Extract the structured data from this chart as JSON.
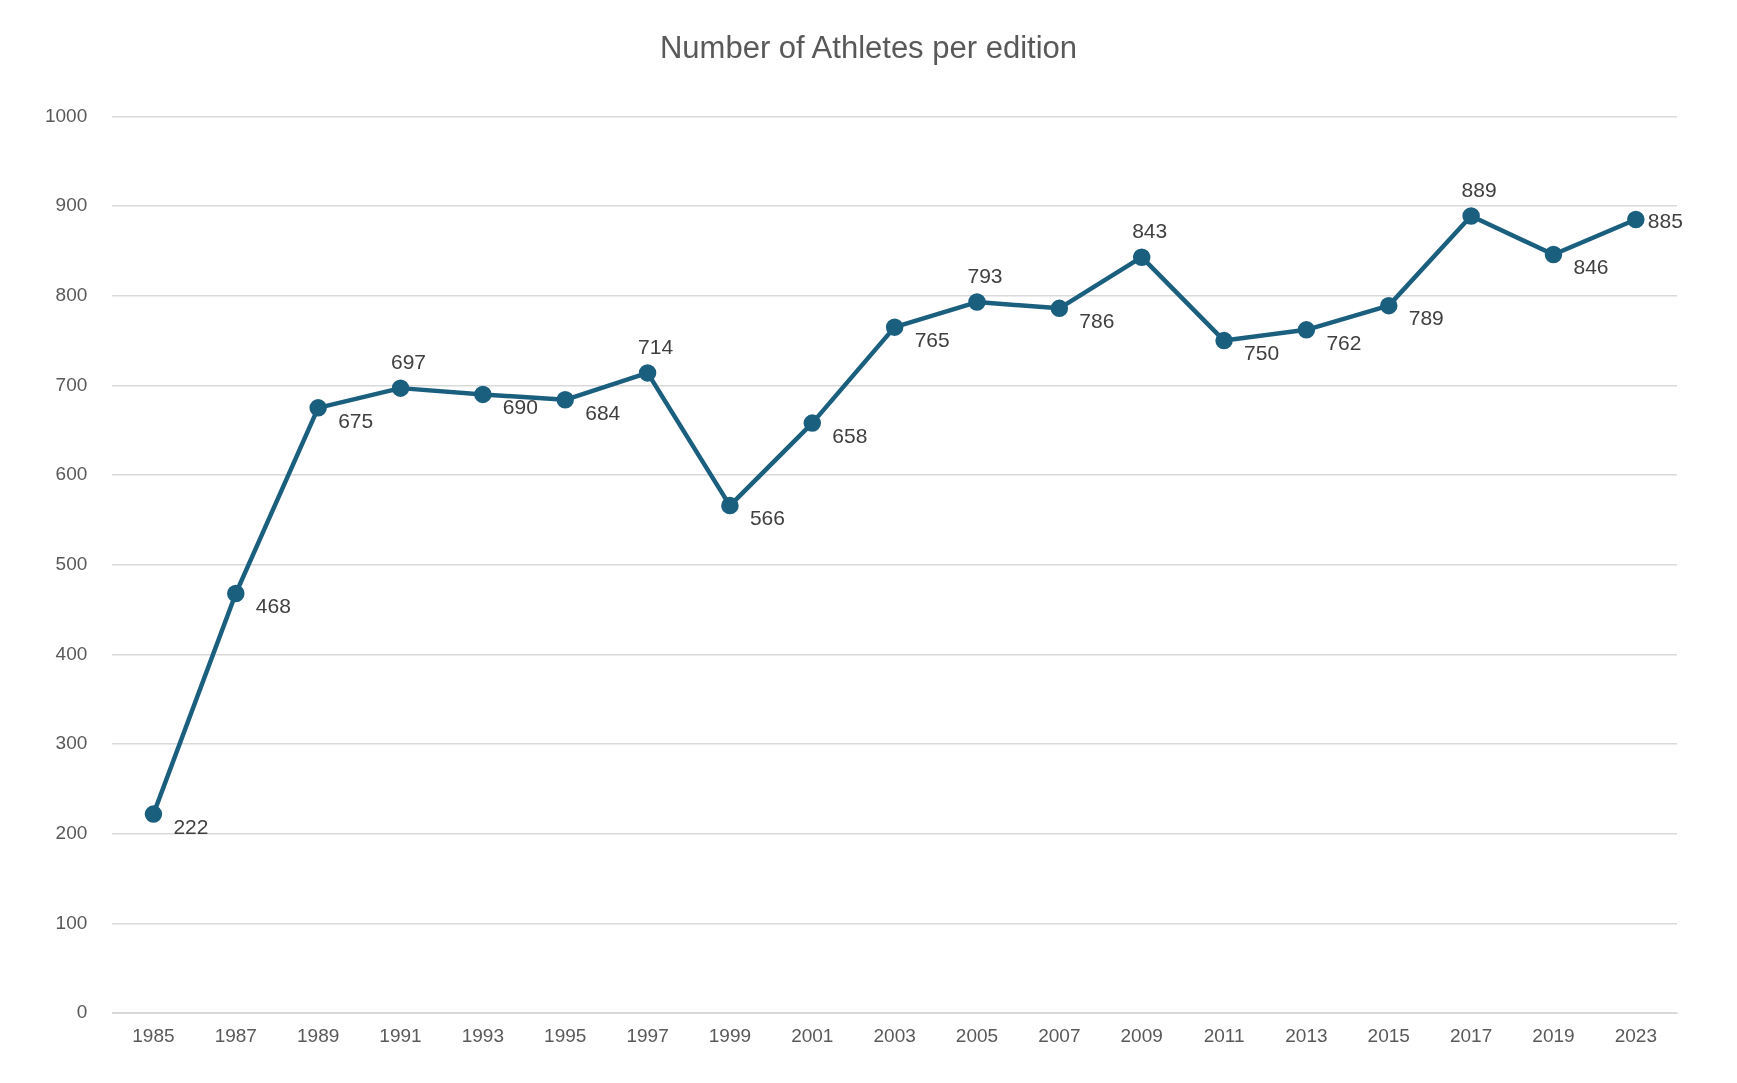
{
  "chart_data": {
    "type": "line",
    "title": "Number of Athletes per edition",
    "categories": [
      "1985",
      "1987",
      "1989",
      "1991",
      "1993",
      "1995",
      "1997",
      "1999",
      "2001",
      "2003",
      "2005",
      "2007",
      "2009",
      "2011",
      "2013",
      "2015",
      "2017",
      "2019",
      "2023"
    ],
    "series": [
      {
        "color": "#1b5f7f",
        "values": [
          222,
          468,
          675,
          697,
          690,
          684,
          714,
          566,
          658,
          765,
          793,
          786,
          843,
          750,
          762,
          789,
          889,
          846,
          885
        ]
      }
    ],
    "ylim": [
      0,
      1000
    ],
    "yticks": [
      0,
      100,
      200,
      300,
      400,
      500,
      600,
      700,
      800,
      900,
      1000
    ],
    "grid": "y",
    "legend": false,
    "marker": "circle",
    "line_style": "solid",
    "data_labels": true
  }
}
